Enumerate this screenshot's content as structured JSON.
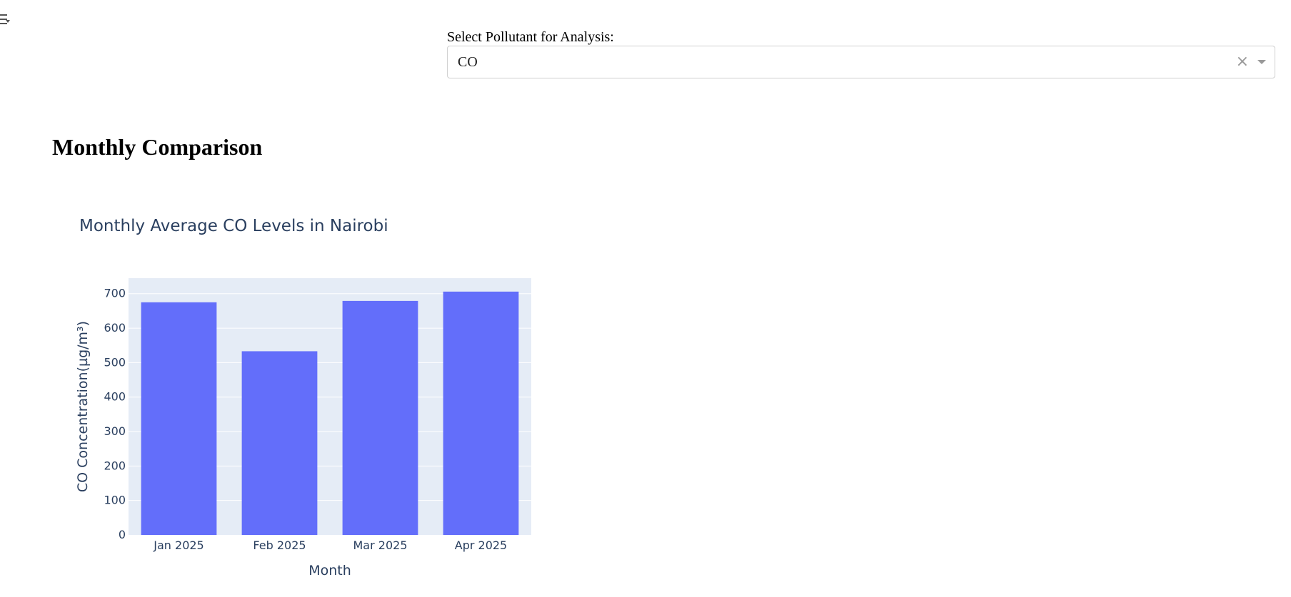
{
  "select": {
    "label": "Select Pollutant for Analysis:",
    "value": "CO",
    "clear_icon": "×"
  },
  "section": {
    "title": "Monthly Comparison"
  },
  "chart_data": {
    "type": "bar",
    "title": "Monthly Average CO Levels in Nairobi",
    "xlabel": "Month",
    "ylabel": "CO Concentration(µg/m³)",
    "categories": [
      "Jan 2025",
      "Feb 2025",
      "Mar 2025",
      "Apr 2025"
    ],
    "values": [
      675,
      533,
      679,
      706
    ],
    "ylim": [
      0,
      745
    ],
    "yticks": [
      0,
      100,
      200,
      300,
      400,
      500,
      600,
      700
    ],
    "bar_color": "#636efa",
    "plot_bg": "#e5ecf6",
    "grid": true
  }
}
